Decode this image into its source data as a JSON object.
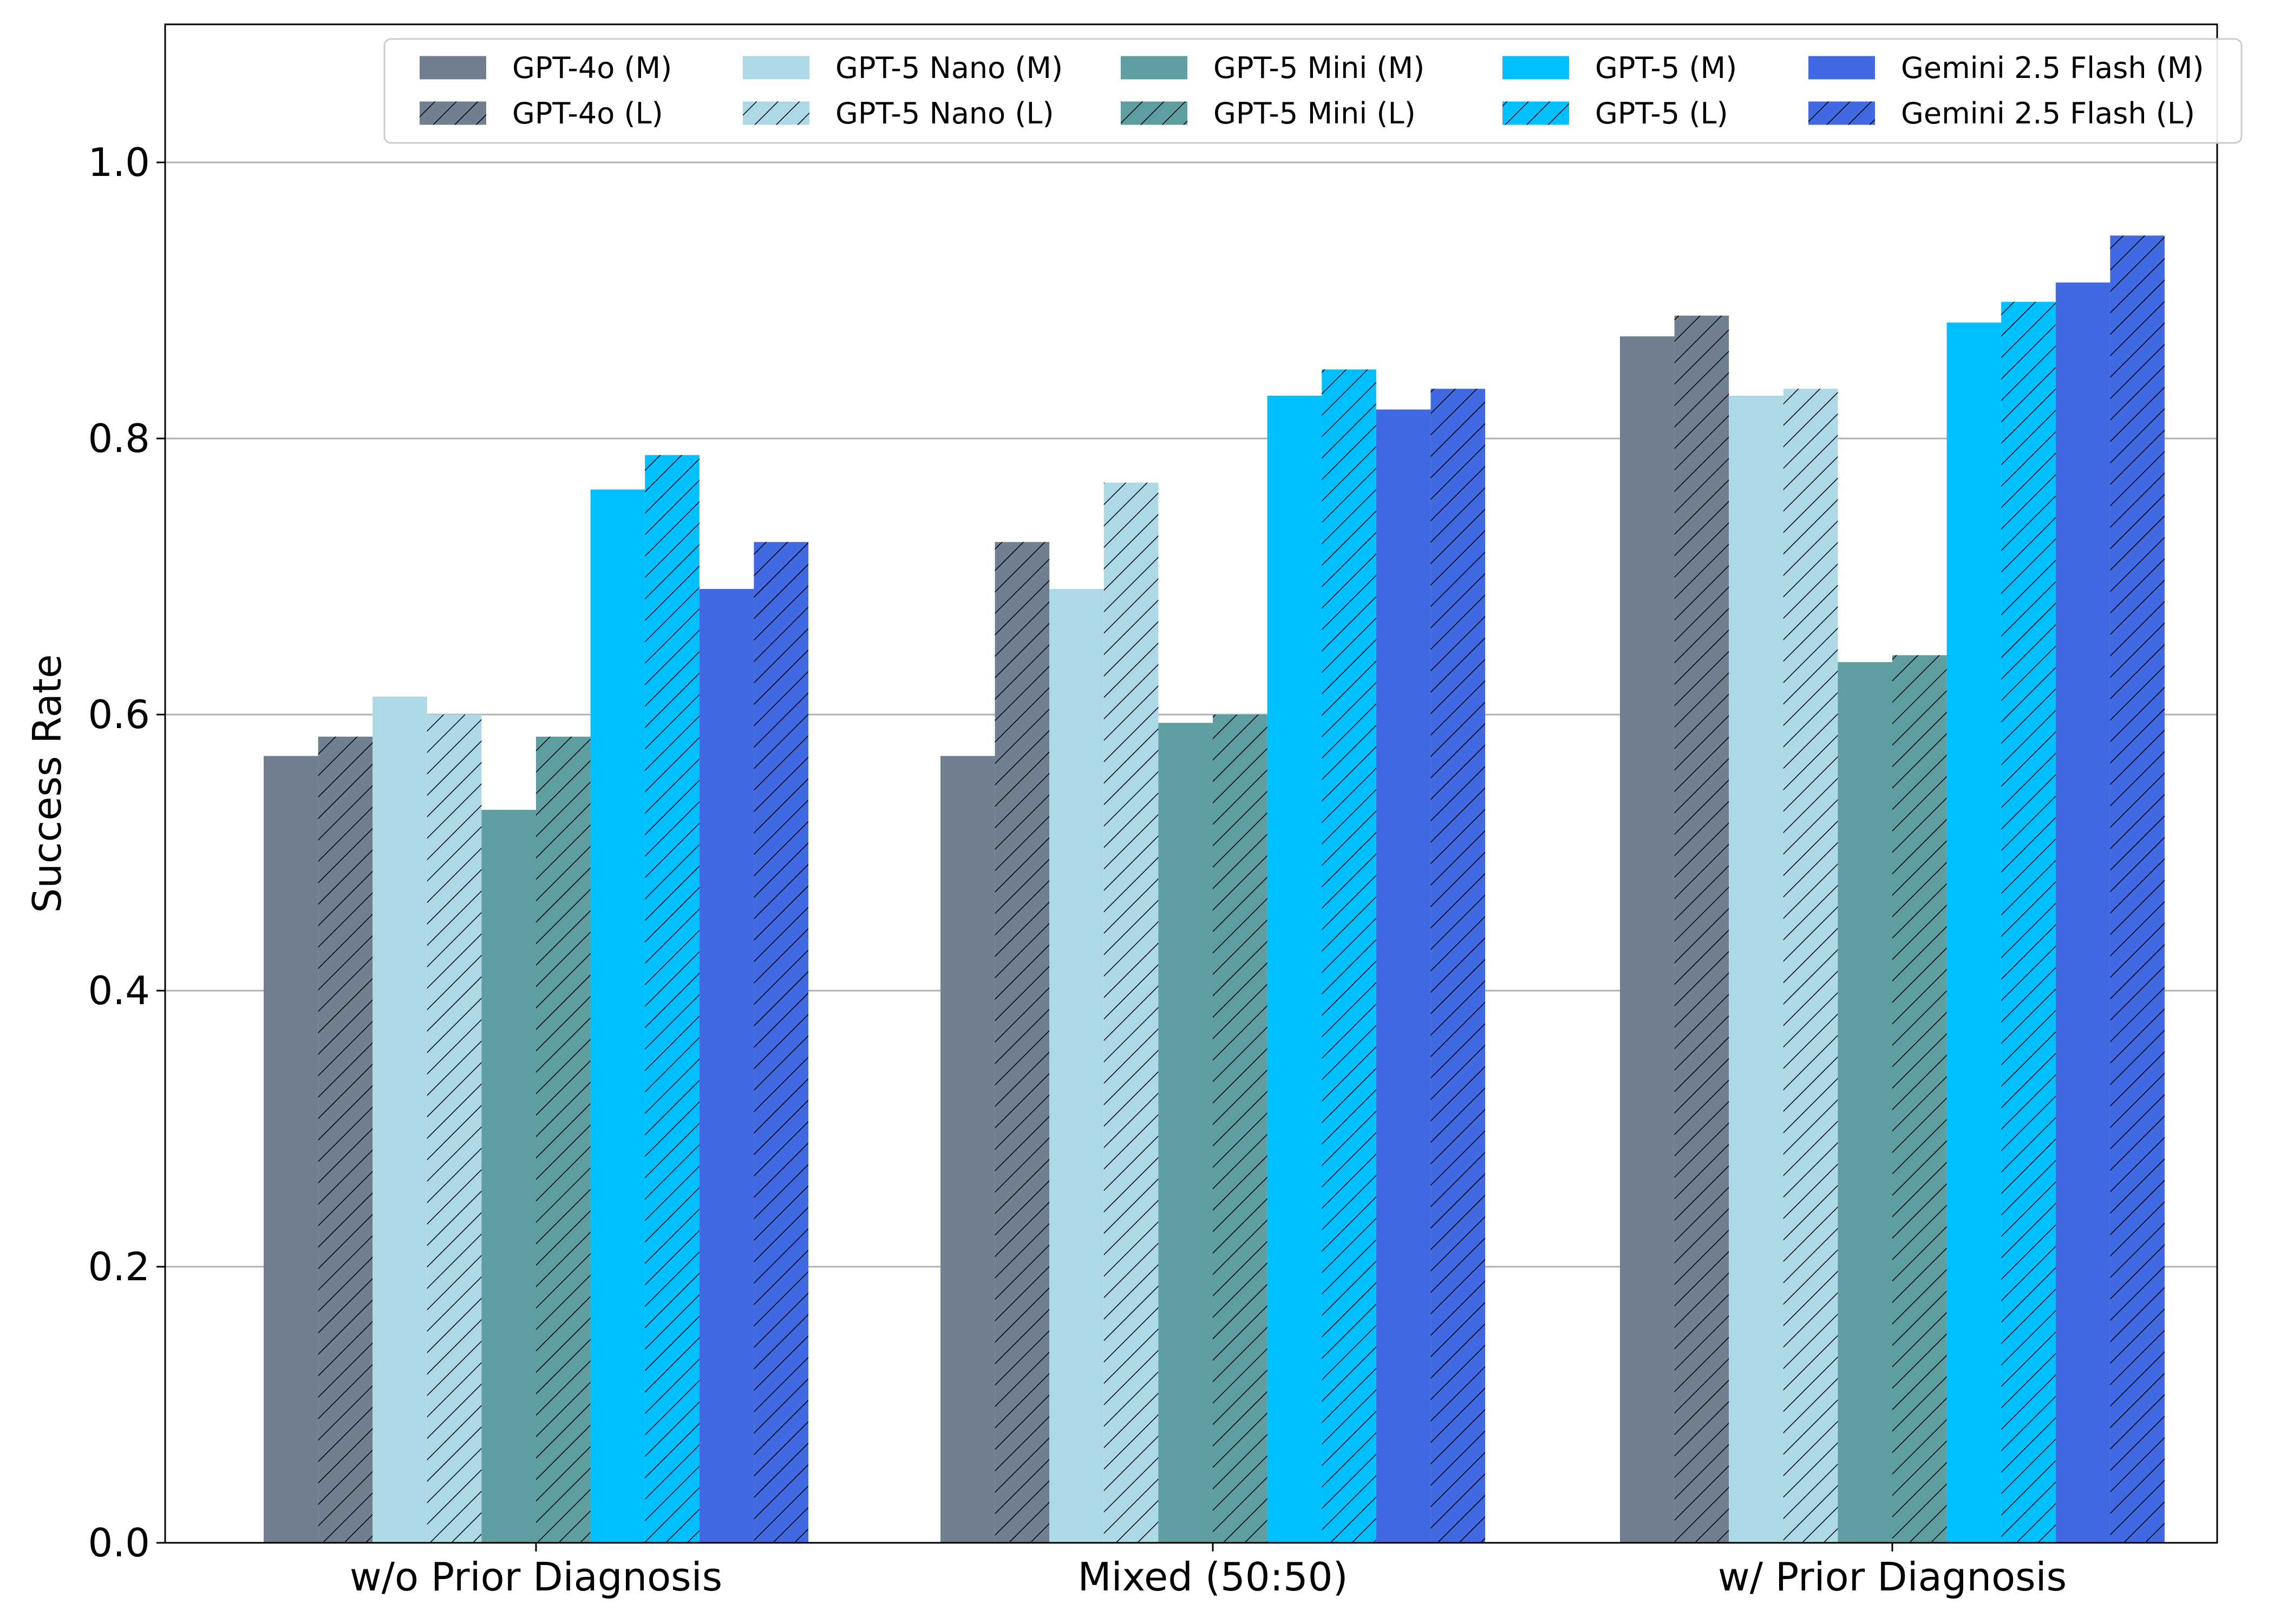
{
  "chart_data": {
    "type": "bar",
    "xlabel": "",
    "ylabel": "Success Rate",
    "ylim": [
      0.0,
      1.1
    ],
    "yticks": [
      "0.0",
      "0.2",
      "0.4",
      "0.6",
      "0.8",
      "1.0"
    ],
    "grid": "horizontal",
    "legend_position": "top",
    "categories": [
      "w/o Prior Diagnosis",
      "Mixed (50:50)",
      "w/ Prior Diagnosis"
    ],
    "series": [
      {
        "name": "GPT-4o (M)",
        "color": "#708090",
        "hatch": false,
        "values": [
          0.57,
          0.57,
          0.874
        ]
      },
      {
        "name": "GPT-4o (L)",
        "color": "#708090",
        "hatch": true,
        "values": [
          0.584,
          0.725,
          0.889
        ]
      },
      {
        "name": "GPT-5 Nano (M)",
        "color": "#add8e6",
        "hatch": false,
        "values": [
          0.613,
          0.691,
          0.831
        ]
      },
      {
        "name": "GPT-5 Nano (L)",
        "color": "#add8e6",
        "hatch": true,
        "values": [
          0.6,
          0.768,
          0.836
        ]
      },
      {
        "name": "GPT-5 Mini (M)",
        "color": "#5f9ea0",
        "hatch": false,
        "values": [
          0.531,
          0.594,
          0.638
        ]
      },
      {
        "name": "GPT-5 Mini (L)",
        "color": "#5f9ea0",
        "hatch": true,
        "values": [
          0.584,
          0.6,
          0.643
        ]
      },
      {
        "name": "GPT-5 (M)",
        "color": "#00bfff",
        "hatch": false,
        "values": [
          0.763,
          0.831,
          0.884
        ]
      },
      {
        "name": "GPT-5 (L)",
        "color": "#00bfff",
        "hatch": true,
        "values": [
          0.788,
          0.85,
          0.899
        ]
      },
      {
        "name": "Gemini 2.5 Flash (M)",
        "color": "#4169e1",
        "hatch": false,
        "values": [
          0.691,
          0.821,
          0.913
        ]
      },
      {
        "name": "Gemini 2.5 Flash (L)",
        "color": "#4169e1",
        "hatch": true,
        "values": [
          0.725,
          0.836,
          0.947
        ]
      }
    ]
  }
}
